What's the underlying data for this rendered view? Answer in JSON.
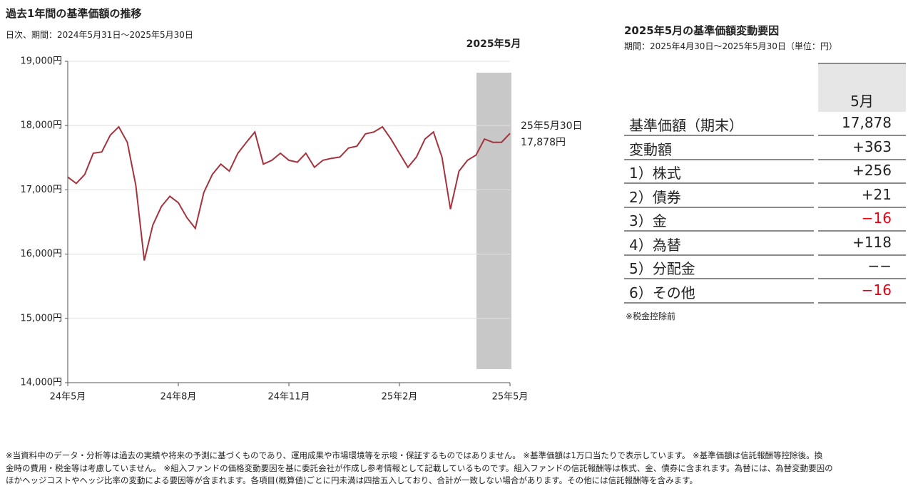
{
  "chart_data": {
    "type": "line",
    "title": "過去1年間の基準価額の推移",
    "subtitle": "日次、期間：2024年5月31日～2025年5月30日",
    "highlight_label": "2025年5月",
    "annotations": [
      "25年5月30日",
      "17,878円"
    ],
    "categories": [
      "24年5月",
      null,
      null,
      null,
      null,
      null,
      null,
      null,
      null,
      null,
      null,
      null,
      null,
      "24年8月",
      null,
      null,
      null,
      null,
      null,
      null,
      null,
      null,
      null,
      null,
      null,
      null,
      "24年11月",
      null,
      null,
      null,
      null,
      null,
      null,
      null,
      null,
      null,
      null,
      null,
      null,
      "25年2月",
      null,
      null,
      null,
      null,
      null,
      null,
      null,
      null,
      null,
      null,
      null,
      null,
      "25年5月"
    ],
    "series": [
      {
        "name": "基準価額",
        "color": "#a3333d",
        "values": [
          17200,
          17100,
          17240,
          17570,
          17590,
          17850,
          17980,
          17740,
          17070,
          15900,
          16450,
          16740,
          16900,
          16800,
          16570,
          16400,
          16960,
          17240,
          17400,
          17290,
          17570,
          17740,
          17900,
          17400,
          17460,
          17570,
          17460,
          17430,
          17570,
          17350,
          17460,
          17490,
          17510,
          17650,
          17680,
          17870,
          17900,
          17980,
          17790,
          17570,
          17350,
          17510,
          17790,
          17900,
          17510,
          16700,
          17290,
          17460,
          17540,
          17790,
          17740,
          17740,
          17878
        ]
      }
    ],
    "ylim": [
      14000,
      19000
    ],
    "yticks": [
      {
        "value": 14000,
        "label": "14,000円"
      },
      {
        "value": 15000,
        "label": "15,000円"
      },
      {
        "value": 16000,
        "label": "16,000円"
      },
      {
        "value": 17000,
        "label": "17,000円"
      },
      {
        "value": 18000,
        "label": "18,000円"
      },
      {
        "value": 19000,
        "label": "19,000円"
      }
    ],
    "grid": true
  },
  "table": {
    "title": "2025年5月の基準価額変動要因",
    "subtitle": "期間：2025年4月30日～2025年5月30日（単位：円）",
    "column": "5月",
    "rows": [
      {
        "label": "基準価額（期末）",
        "value": "17,878"
      },
      {
        "label": "変動額",
        "value": "+363"
      },
      {
        "label": "1）株式",
        "value": "+256"
      },
      {
        "label": "2）債券",
        "value": "+21"
      },
      {
        "label": "3）金",
        "value": "−16",
        "color": "#e60012"
      },
      {
        "label": "4）為替",
        "value": "+118"
      },
      {
        "label": "5）分配金",
        "value": "−−"
      },
      {
        "label": "6）その他",
        "value": "−16",
        "color": "#e60012"
      }
    ],
    "note": "※税金控除前"
  },
  "footnotes": [
    "※当資料中のデータ・分析等は過去の実績や将来の予測に基づくものであり、運用成果や市場環境等を示唆・保証するものではありません。 ※基準価額は1万口当たりで表示しています。 ※基準価額は信託報酬等控除後。換",
    "金時の費用・税金等は考慮していません。 ※組入ファンドの価格変動要因を基に委託会社が作成し参考情報として記載しているものです。組入ファンドの信託報酬等は株式、金、債券に含まれます。為替には、為替変動要因の",
    "ほかヘッジコストやヘッジ比率の変動による要因等が含まれます。各項目(概算値)ごとに円未満は四捨五入しており、合計が一致しない場合があります。その他には信託報酬等を含みます。"
  ]
}
